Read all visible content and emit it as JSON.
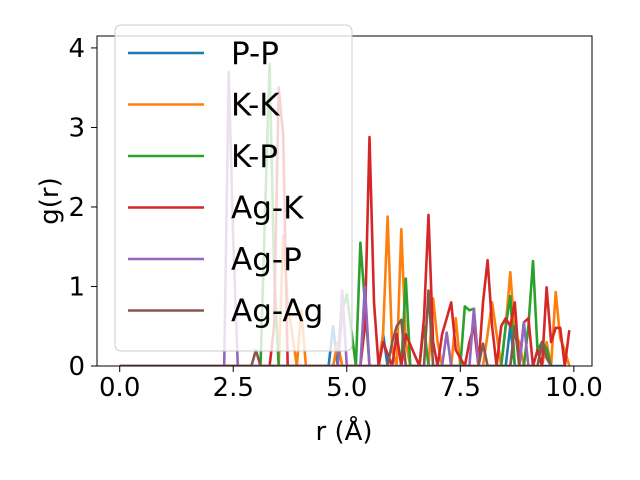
{
  "chart_data": {
    "type": "line",
    "title": "",
    "xlabel": "r (Å)",
    "ylabel": "g(r)",
    "xlim": [
      -0.5,
      10.4
    ],
    "ylim": [
      0,
      4.15
    ],
    "xticks": [
      0.0,
      2.5,
      5.0,
      7.5,
      10.0
    ],
    "xtick_labels": [
      "0.0",
      "2.5",
      "5.0",
      "7.5",
      "10.0"
    ],
    "yticks": [
      0,
      1,
      2,
      3,
      4
    ],
    "ytick_labels": [
      "0",
      "1",
      "2",
      "3",
      "4"
    ],
    "grid": false,
    "legend_position": "top-left",
    "series": [
      {
        "name": "P-P",
        "color": "#1f77b4",
        "x": [
          0.0,
          4.6,
          4.7,
          4.8,
          5.7,
          5.8,
          5.9,
          8.5,
          8.6,
          8.7,
          9.8
        ],
        "y": [
          0,
          0,
          0.5,
          0,
          0,
          0.4,
          0,
          0,
          0.5,
          0,
          0
        ]
      },
      {
        "name": "K-K",
        "color": "#ff7f0e",
        "x": [
          0.0,
          3.5,
          3.6,
          3.7,
          3.9,
          4.0,
          4.1,
          4.7,
          4.8,
          4.9,
          5.7,
          5.8,
          5.9,
          6.0,
          6.1,
          6.2,
          6.3,
          6.4,
          6.8,
          6.9,
          7.0,
          7.1,
          7.3,
          7.4,
          7.5,
          8.0,
          8.1,
          8.2,
          8.4,
          8.5,
          8.6,
          8.7,
          8.8,
          8.9,
          9.3,
          9.4,
          9.5,
          9.6,
          9.7,
          9.8,
          9.9
        ],
        "y": [
          0,
          0,
          1.65,
          0.8,
          0,
          0.7,
          0,
          0,
          0.3,
          0,
          0,
          0.4,
          1.88,
          0.2,
          0,
          1.72,
          0.3,
          0,
          0,
          0.85,
          0.3,
          0,
          0,
          0.6,
          0,
          0,
          0.4,
          0.8,
          0,
          0.5,
          1.18,
          0.4,
          0.3,
          0,
          0,
          0.3,
          0,
          0.93,
          0.35,
          0.2,
          0
        ]
      },
      {
        "name": "K-P",
        "color": "#2ca02c",
        "x": [
          0.0,
          3.1,
          3.2,
          3.3,
          3.4,
          3.5,
          4.8,
          4.9,
          5.0,
          5.2,
          5.3,
          5.4,
          5.5,
          6.2,
          6.3,
          6.4,
          6.6,
          6.7,
          6.8,
          7.5,
          7.6,
          7.7,
          7.8,
          7.9,
          8.4,
          8.5,
          8.6,
          8.7,
          8.9,
          9.0,
          9.1,
          9.2,
          9.3,
          9.4,
          9.5
        ],
        "y": [
          0,
          0,
          1.9,
          3.8,
          1.2,
          0,
          0,
          0.7,
          0.9,
          0,
          1.55,
          0.8,
          0,
          0,
          1.1,
          0,
          0,
          0.5,
          0,
          0,
          0.75,
          0.7,
          0.72,
          0,
          0,
          0.5,
          0.88,
          0,
          0,
          0.5,
          1.32,
          0.2,
          0.3,
          0.22,
          0
        ]
      },
      {
        "name": "Ag-K",
        "color": "#d62728",
        "x": [
          0.0,
          3.3,
          3.4,
          3.5,
          3.6,
          3.7,
          5.3,
          5.4,
          5.5,
          5.6,
          5.7,
          5.8,
          6.0,
          6.1,
          6.2,
          6.3,
          6.6,
          6.7,
          6.8,
          6.9,
          7.0,
          7.1,
          7.2,
          7.3,
          7.4,
          7.6,
          7.7,
          7.8,
          7.9,
          8.0,
          8.1,
          8.2,
          8.3,
          8.4,
          8.5,
          8.6,
          8.7,
          8.8,
          8.9,
          9.0,
          9.1,
          9.2,
          9.3,
          9.4,
          9.5,
          9.6,
          9.7,
          9.8,
          9.9
        ],
        "y": [
          0,
          0,
          0.5,
          3.5,
          2.9,
          0,
          0,
          0.5,
          2.88,
          0.8,
          0,
          0.3,
          0,
          0.4,
          0,
          0.4,
          0,
          0.6,
          1.9,
          0.3,
          0,
          0.4,
          0.6,
          0.8,
          0.2,
          0,
          0.3,
          0.5,
          0,
          0.8,
          1.33,
          0.5,
          0,
          0.5,
          0.6,
          0.5,
          0.8,
          0,
          0.55,
          0.6,
          0,
          0.2,
          0,
          0.99,
          0.3,
          0.48,
          0.48,
          0,
          0.45
        ]
      },
      {
        "name": "Ag-P",
        "color": "#9467bd",
        "x": [
          0.0,
          2.3,
          2.4,
          2.5,
          2.6,
          4.8,
          4.9,
          5.0,
          5.3,
          5.4,
          5.5,
          7.1,
          7.2,
          7.3,
          7.7,
          7.8,
          7.9,
          8.8,
          8.9,
          9.0
        ],
        "y": [
          0,
          0,
          3.7,
          1.6,
          0,
          0,
          0.95,
          0,
          0,
          1.0,
          0,
          0,
          0.42,
          0,
          0,
          0.72,
          0,
          0,
          0.55,
          0
        ]
      },
      {
        "name": "Ag-Ag",
        "color": "#8c564b",
        "x": [
          0.0,
          2.9,
          3.0,
          3.1,
          5.9,
          6.0,
          6.1,
          6.2,
          6.3,
          6.7,
          6.8,
          6.9,
          7.9,
          8.0,
          8.1,
          8.6,
          8.7,
          8.8,
          9.2,
          9.3,
          9.4,
          9.5
        ],
        "y": [
          0,
          0,
          0.2,
          0,
          0,
          0.3,
          0.5,
          0.58,
          0,
          0,
          0.95,
          0,
          0,
          0.28,
          0,
          0,
          0.5,
          0,
          0,
          0.3,
          0.1,
          0
        ]
      }
    ]
  }
}
